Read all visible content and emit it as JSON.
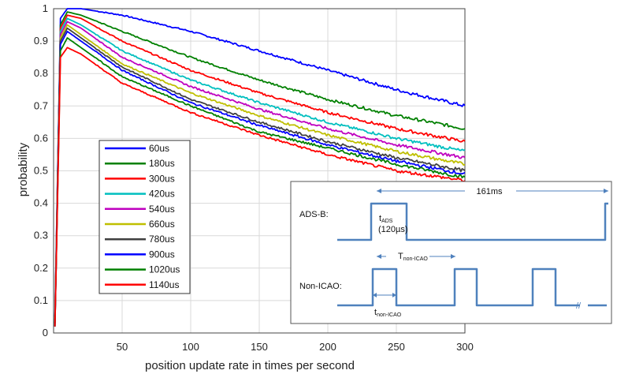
{
  "chart_data": {
    "type": "line",
    "xlabel": "position update rate in times per second",
    "ylabel": "probability",
    "xlim": [
      0,
      300
    ],
    "ylim": [
      0,
      1
    ],
    "xticks": [
      "50",
      "100",
      "150",
      "200",
      "250",
      "300"
    ],
    "yticks": [
      "0",
      "0.1",
      "0.2",
      "0.3",
      "0.4",
      "0.5",
      "0.6",
      "0.7",
      "0.8",
      "0.9",
      "1"
    ],
    "grid": true,
    "legend_position": "left-center",
    "series": [
      {
        "name": "60us",
        "color": "#0000ff",
        "x": [
          1,
          5,
          10,
          20,
          50,
          100,
          150,
          200,
          250,
          300
        ],
        "y": [
          0.05,
          0.97,
          1.0,
          1.0,
          0.98,
          0.93,
          0.87,
          0.81,
          0.75,
          0.7
        ]
      },
      {
        "name": "180us",
        "color": "#008000",
        "x": [
          1,
          5,
          10,
          20,
          50,
          100,
          150,
          200,
          250,
          300
        ],
        "y": [
          0.04,
          0.95,
          0.99,
          0.98,
          0.93,
          0.85,
          0.78,
          0.72,
          0.67,
          0.63
        ]
      },
      {
        "name": "300us",
        "color": "#ff0000",
        "x": [
          1,
          5,
          10,
          20,
          50,
          100,
          150,
          200,
          250,
          300
        ],
        "y": [
          0.04,
          0.94,
          0.98,
          0.97,
          0.9,
          0.81,
          0.74,
          0.68,
          0.63,
          0.59
        ]
      },
      {
        "name": "420us",
        "color": "#00bfbf",
        "x": [
          1,
          5,
          10,
          20,
          50,
          100,
          150,
          200,
          250,
          300
        ],
        "y": [
          0.03,
          0.93,
          0.97,
          0.95,
          0.87,
          0.78,
          0.71,
          0.65,
          0.6,
          0.56
        ]
      },
      {
        "name": "540us",
        "color": "#bf00bf",
        "x": [
          1,
          5,
          10,
          20,
          50,
          100,
          150,
          200,
          250,
          300
        ],
        "y": [
          0.03,
          0.92,
          0.96,
          0.94,
          0.85,
          0.76,
          0.69,
          0.63,
          0.58,
          0.54
        ]
      },
      {
        "name": "660us",
        "color": "#bfbf00",
        "x": [
          1,
          5,
          10,
          20,
          50,
          100,
          150,
          200,
          250,
          300
        ],
        "y": [
          0.03,
          0.91,
          0.95,
          0.92,
          0.83,
          0.74,
          0.67,
          0.61,
          0.56,
          0.52
        ]
      },
      {
        "name": "780us",
        "color": "#404040",
        "x": [
          1,
          5,
          10,
          20,
          50,
          100,
          150,
          200,
          250,
          300
        ],
        "y": [
          0.02,
          0.9,
          0.94,
          0.91,
          0.82,
          0.72,
          0.65,
          0.59,
          0.54,
          0.5
        ]
      },
      {
        "name": "900us",
        "color": "#0000ff",
        "x": [
          1,
          5,
          10,
          20,
          50,
          100,
          150,
          200,
          250,
          300
        ],
        "y": [
          0.02,
          0.89,
          0.93,
          0.9,
          0.81,
          0.71,
          0.64,
          0.58,
          0.53,
          0.49
        ]
      },
      {
        "name": "1020us",
        "color": "#008000",
        "x": [
          1,
          5,
          10,
          20,
          50,
          100,
          150,
          200,
          250,
          300
        ],
        "y": [
          0.02,
          0.87,
          0.91,
          0.88,
          0.79,
          0.7,
          0.62,
          0.57,
          0.52,
          0.48
        ]
      },
      {
        "name": "1140us",
        "color": "#ff0000",
        "x": [
          1,
          5,
          10,
          20,
          50,
          100,
          150,
          200,
          250,
          300
        ],
        "y": [
          0.02,
          0.85,
          0.88,
          0.86,
          0.77,
          0.68,
          0.61,
          0.55,
          0.5,
          0.47
        ]
      }
    ]
  },
  "inset": {
    "period_label": "161ms",
    "ads_label": "ADS-B:",
    "t_ads_main": "t",
    "t_ads_sub": "ADS",
    "t_ads_value": "(120µs)",
    "non_icao_label": "Non-ICAO:",
    "T_non_main": "T",
    "T_non_sub": "non-ICAO",
    "t_non_main": "t",
    "t_non_sub": "non-ICAO",
    "break_mark": "//",
    "line_color": "#4f81bd"
  }
}
